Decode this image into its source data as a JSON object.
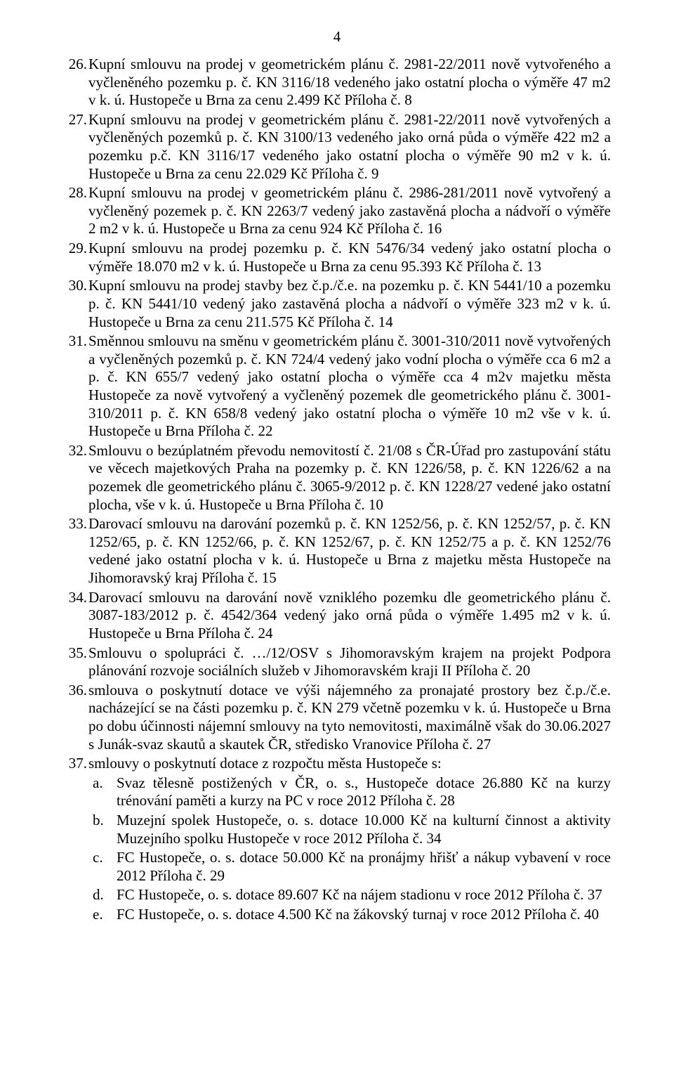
{
  "page_number": "4",
  "items": [
    {
      "n": "26.",
      "t": "Kupní smlouvu na prodej v geometrickém plánu č. 2981-22/2011 nově vytvořeného a vyčleněného pozemku p. č. KN 3116/18 vedeného jako ostatní plocha o výměře 47 m2 v k. ú. Hustopeče u Brna za cenu 2.499 Kč Příloha č. 8"
    },
    {
      "n": "27.",
      "t": "Kupní smlouvu na prodej v geometrickém plánu č. 2981-22/2011 nově vytvořených a vyčleněných pozemků p. č. KN 3100/13 vedeného jako orná půda o výměře 422 m2 a pozemku p.č. KN 3116/17 vedeného jako ostatní plocha o výměře 90 m2 v k. ú. Hustopeče u Brna za cenu 22.029 Kč Příloha č. 9"
    },
    {
      "n": "28.",
      "t": "Kupní smlouvu na prodej v geometrickém plánu č. 2986-281/2011 nově vytvořený a vyčleněný pozemek p. č. KN 2263/7 vedený jako zastavěná plocha a nádvoří o výměře 2 m2 v k. ú. Hustopeče u Brna za cenu 924 Kč Příloha č. 16"
    },
    {
      "n": "29.",
      "t": "Kupní smlouvu na prodej pozemku p. č. KN 5476/34  vedený jako ostatní plocha o výměře 18.070 m2 v k. ú. Hustopeče u Brna za cenu 95.393 Kč Příloha č. 13"
    },
    {
      "n": "30.",
      "t": "Kupní smlouvu na prodej stavby bez č.p./č.e. na pozemku p. č. KN 5441/10 a pozemku p. č. KN 5441/10 vedený jako zastavěná plocha a nádvoří o výměře 323 m2 v k. ú. Hustopeče u Brna za cenu 211.575 Kč Příloha č. 14"
    },
    {
      "n": "31.",
      "t": "Směnnou smlouvu na směnu v geometrickém plánu č. 3001-310/2011 nově vytvořených a vyčleněných pozemků p. č. KN 724/4 vedený jako vodní plocha o výměře cca 6 m2 a p. č. KN 655/7 vedený jako ostatní plocha o výměře cca 4 m2v majetku města Hustopeče za nově vytvořený a vyčleněný pozemek dle geometrického plánu č. 3001-310/2011 p. č. KN 658/8 vedený jako ostatní plocha o výměře 10 m2 vše v k. ú. Hustopeče u Brna Příloha č. 22"
    },
    {
      "n": "32.",
      "t": "Smlouvu o bezúplatném převodu nemovitostí č. 21/08 s ČR-Úřad pro zastupování státu ve věcech majetkových Praha na pozemky p. č.  KN 1226/58, p. č. KN 1226/62 a na pozemek dle geometrického plánu č. 3065-9/2012 p. č. KN 1228/27 vedené jako ostatní plocha, vše v k. ú. Hustopeče u Brna Příloha č. 10"
    },
    {
      "n": "33.",
      "t": "Darovací smlouvu na darování pozemků p. č. KN 1252/56, p. č. KN 1252/57, p. č. KN 1252/65, p. č. KN 1252/66, p. č. KN 1252/67, p. č. KN 1252/75 a p. č. KN 1252/76 vedené jako ostatní plocha v k. ú. Hustopeče u Brna z majetku města Hustopeče na Jihomoravský kraj Příloha č. 15"
    },
    {
      "n": "34.",
      "t": "Darovací smlouvu na darování nově vzniklého pozemku dle geometrického plánu č. 3087-183/2012 p. č. 4542/364 vedený jako orná půda o výměře 1.495 m2 v k. ú. Hustopeče u Brna  Příloha č. 24"
    },
    {
      "n": "35.",
      "t": "Smlouvu o spolupráci č. …/12/OSV s Jihomoravským krajem na projekt Podpora plánování rozvoje sociálních služeb v Jihomoravském kraji II Příloha č. 20"
    },
    {
      "n": "36.",
      "t": "smlouva o poskytnutí dotace ve výši nájemného za pronajaté prostory  bez č.p./č.e. nacházející se na části pozemku p. č. KN 279 včetně pozemku v k. ú. Hustopeče u Brna po dobu účinnosti nájemní smlouvy na tyto nemovitosti, maximálně však do 30.06.2027 s Junák-svaz skautů a skautek ČR, středisko Vranovice Příloha č. 27"
    },
    {
      "n": "37.",
      "t": "smlouvy o poskytnutí dotace z rozpočtu města Hustopeče s:",
      "sub": [
        {
          "l": "a.",
          "t": "Svaz tělesně postižených v ČR, o. s., Hustopeče  dotace 26.880 Kč na kurzy trénování paměti a kurzy na PC v roce 2012 Příloha č. 28"
        },
        {
          "l": "b.",
          "t": "Muzejní spolek Hustopeče, o. s.  dotace 10.000 Kč na kulturní činnost a aktivity Muzejního spolku Hustopeče v roce 2012 Příloha č. 34"
        },
        {
          "l": "c.",
          "t": "FC Hustopeče, o. s.  dotace 50.000 Kč na pronájmy hřišť a nákup vybavení v roce 2012 Příloha č. 29"
        },
        {
          "l": "d.",
          "t": "FC Hustopeče, o. s.  dotace 89.607 Kč na nájem stadionu v roce 2012 Příloha č. 37"
        },
        {
          "l": "e.",
          "t": "FC Hustopeče, o. s.  dotace 4.500 Kč na žákovský turnaj v roce 2012 Příloha č. 40"
        }
      ]
    }
  ]
}
